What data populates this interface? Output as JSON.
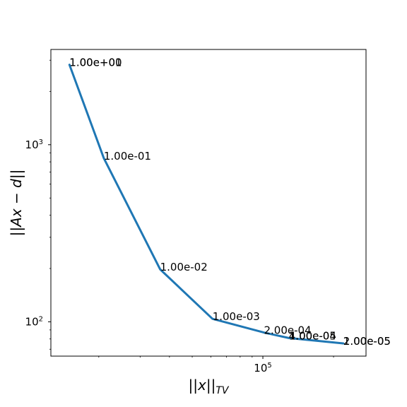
{
  "chart_data": {
    "type": "line",
    "x_scale": "log",
    "y_scale": "log",
    "xlabel": "||x||_TV",
    "ylabel": "||Ax − d||",
    "xlim": [
      12500,
      275000
    ],
    "ylim": [
      64,
      3450
    ],
    "grid": false,
    "line_color": "#1f77b4",
    "x_ticks": [
      {
        "value": 100000,
        "base": "10",
        "exp": "5"
      }
    ],
    "y_ticks": [
      {
        "value": 100,
        "base": "10",
        "exp": "2"
      },
      {
        "value": 1000,
        "base": "10",
        "exp": "3"
      }
    ],
    "points": [
      {
        "x": 15000,
        "y": 2830,
        "label": "1.00e+01"
      },
      {
        "x": 15000,
        "y": 2830,
        "label": "1.00e+00"
      },
      {
        "x": 21000,
        "y": 840,
        "label": "1.00e-01"
      },
      {
        "x": 36500,
        "y": 198,
        "label": "1.00e-02"
      },
      {
        "x": 61000,
        "y": 104,
        "label": "1.00e-03"
      },
      {
        "x": 101000,
        "y": 87,
        "label": "2.00e-04"
      },
      {
        "x": 129000,
        "y": 81,
        "label": "1.00e-04"
      },
      {
        "x": 129000,
        "y": 81,
        "label": "4.00e-05"
      },
      {
        "x": 220000,
        "y": 75.5,
        "label": "2.00e-05"
      },
      {
        "x": 220000,
        "y": 75.5,
        "label": "1.00e-05"
      }
    ]
  }
}
